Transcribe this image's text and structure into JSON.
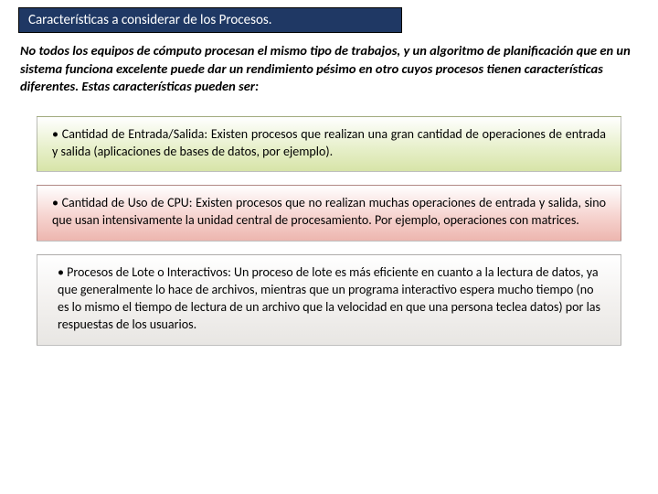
{
  "title": "Características a considerar de los Procesos.",
  "intro": "No todos los equipos de cómputo procesan el mismo tipo de trabajos, y un algoritmo de planificación que en un sistema funciona excelente puede dar un rendimiento pésimo en otro cuyos procesos tienen características diferentes. Estas características pueden ser:",
  "box1": {
    "bullet": "• ",
    "lead": "Cantidad de Entrada/Salida: ",
    "rest": "Existen procesos que realizan una gran cantidad de operaciones de entrada y salida (aplicaciones de bases de datos, por ejemplo)."
  },
  "box2": {
    "bullet": "• ",
    "lead": "Cantidad de Uso de CPU: ",
    "rest": "Existen procesos que no realizan muchas operaciones de entrada y salida, sino que usan intensivamente la unidad central de procesamiento. Por ejemplo, operaciones con matrices."
  },
  "box3": {
    "bullet": "• ",
    "lead": "Procesos de Lote o Interactivos: ",
    "rest": "Un proceso de lote es más eficiente en cuanto a la lectura de datos, ya que generalmente lo hace de archivos, mientras que un programa interactivo espera mucho tiempo (no es lo mismo el tiempo de lectura de un archivo que la velocidad en que una persona teclea datos) por las respuestas de los usuarios."
  }
}
